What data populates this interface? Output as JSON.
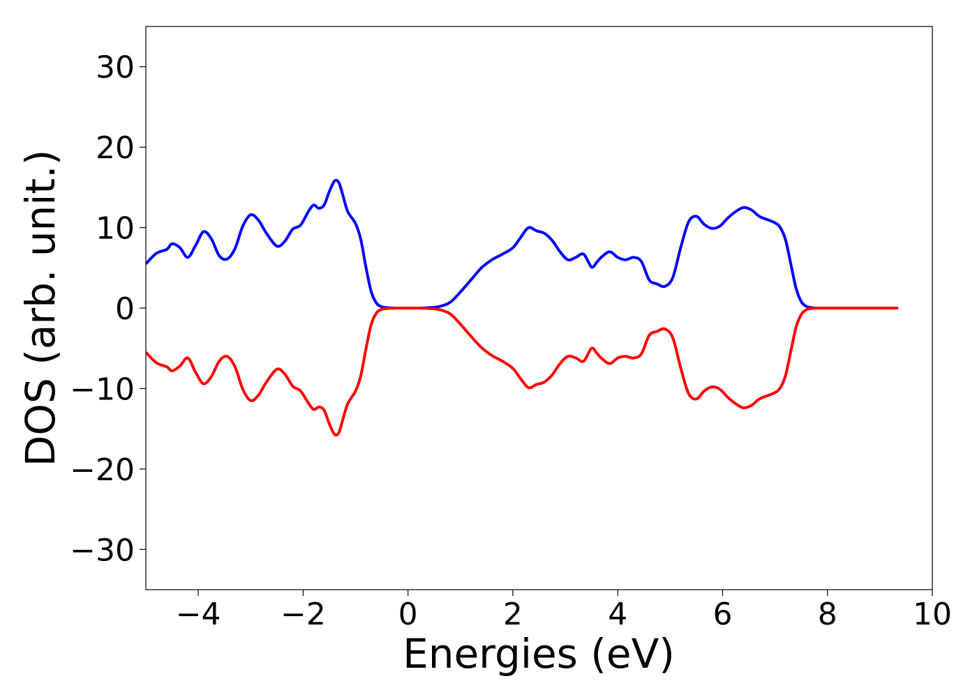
{
  "chart_data": {
    "type": "line",
    "title": "",
    "xlabel": "Energies (eV)",
    "ylabel": "DOS (arb. unit.)",
    "xlim": [
      -5,
      10
    ],
    "ylim": [
      -35,
      35
    ],
    "xticks": [
      -4,
      -2,
      0,
      2,
      4,
      6,
      8,
      10
    ],
    "xtick_labels": [
      "−4",
      "−2",
      "0",
      "2",
      "4",
      "6",
      "8",
      "10"
    ],
    "yticks": [
      -30,
      -20,
      -10,
      0,
      10,
      20,
      30
    ],
    "ytick_labels": [
      "−30",
      "−20",
      "−10",
      "0",
      "10",
      "20",
      "30"
    ],
    "grid": false,
    "legend": "none",
    "series": [
      {
        "color": "#0000ff",
        "x": [
          -5.0,
          -4.8,
          -4.6,
          -4.5,
          -4.35,
          -4.2,
          -4.05,
          -3.9,
          -3.75,
          -3.6,
          -3.45,
          -3.3,
          -3.15,
          -3.0,
          -2.85,
          -2.7,
          -2.5,
          -2.35,
          -2.2,
          -2.05,
          -1.9,
          -1.8,
          -1.7,
          -1.6,
          -1.5,
          -1.4,
          -1.32,
          -1.25,
          -1.15,
          -1.0,
          -0.9,
          -0.8,
          -0.7,
          -0.6,
          -0.5,
          -0.4,
          -0.3,
          -0.2,
          0.0,
          0.2,
          0.4,
          0.6,
          0.8,
          1.0,
          1.2,
          1.4,
          1.6,
          1.8,
          2.0,
          2.15,
          2.3,
          2.45,
          2.6,
          2.75,
          2.9,
          3.05,
          3.2,
          3.35,
          3.5,
          3.6,
          3.7,
          3.85,
          4.0,
          4.15,
          4.3,
          4.45,
          4.6,
          4.75,
          4.9,
          5.05,
          5.2,
          5.35,
          5.5,
          5.65,
          5.8,
          5.95,
          6.1,
          6.25,
          6.4,
          6.55,
          6.7,
          6.85,
          7.0,
          7.1,
          7.2,
          7.3,
          7.4,
          7.5,
          7.6,
          7.7,
          7.8,
          8.0,
          8.5,
          9.0,
          9.35
        ],
        "y": [
          5.5,
          6.8,
          7.3,
          8.0,
          7.5,
          6.3,
          7.8,
          9.5,
          8.6,
          6.5,
          6.1,
          7.4,
          10.2,
          11.6,
          10.9,
          9.3,
          7.7,
          8.3,
          9.8,
          10.3,
          12.0,
          12.8,
          12.4,
          12.8,
          14.5,
          15.8,
          15.6,
          14.2,
          12.0,
          10.5,
          8.5,
          5.0,
          2.0,
          0.6,
          0.15,
          0.05,
          0.02,
          0.0,
          0.0,
          0.0,
          0.05,
          0.2,
          0.7,
          2.0,
          3.5,
          5.0,
          6.0,
          6.7,
          7.5,
          8.8,
          10.0,
          9.6,
          9.3,
          8.4,
          7.0,
          6.0,
          6.3,
          6.7,
          5.1,
          5.7,
          6.4,
          7.0,
          6.3,
          6.0,
          6.3,
          5.8,
          3.5,
          3.0,
          2.7,
          3.8,
          7.5,
          10.7,
          11.4,
          10.4,
          9.9,
          10.2,
          11.2,
          12.0,
          12.5,
          12.2,
          11.4,
          11.0,
          10.6,
          10.0,
          8.5,
          5.5,
          2.5,
          0.8,
          0.2,
          0.05,
          0.0,
          0.0,
          0.0,
          0.0,
          0.0
        ]
      },
      {
        "color": "#ff0000",
        "x": [
          -5.0,
          -4.8,
          -4.6,
          -4.5,
          -4.35,
          -4.2,
          -4.05,
          -3.9,
          -3.75,
          -3.6,
          -3.45,
          -3.3,
          -3.15,
          -3.0,
          -2.85,
          -2.7,
          -2.5,
          -2.35,
          -2.2,
          -2.05,
          -1.9,
          -1.8,
          -1.7,
          -1.6,
          -1.5,
          -1.4,
          -1.32,
          -1.25,
          -1.15,
          -1.0,
          -0.9,
          -0.8,
          -0.7,
          -0.6,
          -0.5,
          -0.4,
          -0.3,
          -0.2,
          0.0,
          0.2,
          0.4,
          0.6,
          0.8,
          1.0,
          1.2,
          1.4,
          1.6,
          1.8,
          2.0,
          2.15,
          2.3,
          2.45,
          2.6,
          2.75,
          2.9,
          3.05,
          3.2,
          3.35,
          3.5,
          3.6,
          3.7,
          3.85,
          4.0,
          4.15,
          4.3,
          4.45,
          4.6,
          4.75,
          4.9,
          5.05,
          5.2,
          5.35,
          5.5,
          5.65,
          5.8,
          5.95,
          6.1,
          6.25,
          6.4,
          6.55,
          6.7,
          6.85,
          7.0,
          7.1,
          7.2,
          7.3,
          7.4,
          7.5,
          7.6,
          7.7,
          7.8,
          8.0,
          8.5,
          9.0,
          9.35
        ],
        "y": [
          -5.5,
          -6.8,
          -7.3,
          -7.8,
          -7.2,
          -6.2,
          -8.0,
          -9.4,
          -8.5,
          -6.6,
          -6.0,
          -7.3,
          -10.1,
          -11.5,
          -10.8,
          -9.2,
          -7.6,
          -8.2,
          -9.7,
          -10.3,
          -11.8,
          -12.6,
          -12.3,
          -12.7,
          -14.4,
          -15.7,
          -15.5,
          -14.0,
          -11.9,
          -10.3,
          -8.4,
          -5.0,
          -2.0,
          -0.6,
          -0.15,
          -0.05,
          -0.02,
          0.0,
          0.0,
          0.0,
          -0.05,
          -0.2,
          -0.7,
          -2.0,
          -3.5,
          -4.9,
          -5.9,
          -6.6,
          -7.5,
          -8.8,
          -9.9,
          -9.5,
          -9.2,
          -8.3,
          -6.9,
          -6.0,
          -6.2,
          -6.6,
          -5.0,
          -5.6,
          -6.3,
          -6.9,
          -6.2,
          -6.0,
          -6.2,
          -5.7,
          -3.4,
          -2.9,
          -2.6,
          -3.7,
          -7.4,
          -10.6,
          -11.3,
          -10.3,
          -9.8,
          -10.1,
          -11.1,
          -11.9,
          -12.4,
          -12.1,
          -11.3,
          -10.9,
          -10.5,
          -9.9,
          -8.4,
          -5.4,
          -2.4,
          -0.8,
          -0.2,
          -0.05,
          0.0,
          0.0,
          0.0,
          0.0,
          0.0
        ]
      }
    ]
  }
}
